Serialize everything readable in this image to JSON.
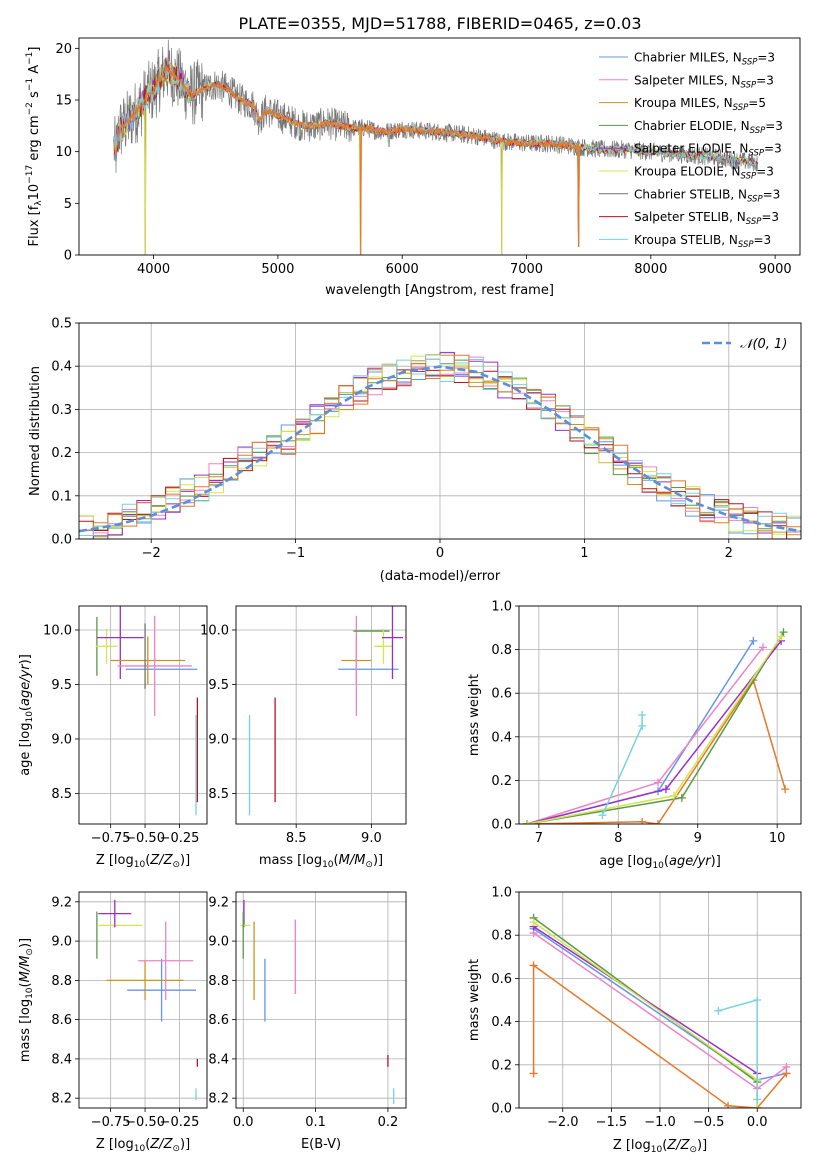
{
  "figure": {
    "title": "PLATE=0355, MJD=51788, FIBERID=0465, z=0.03",
    "colors": {
      "Chabrier MILES": "#6495ed",
      "Salpeter MILES": "#ee82c8",
      "Kroupa MILES": "#c8961e",
      "Chabrier ELODIE": "#5a9a46",
      "Salpeter ELODIE": "#9a30c8",
      "Kroupa ELODIE": "#d2e650",
      "Chabrier STELIB": "#707070",
      "Salpeter STELIB": "#b4141e",
      "Kroupa STELIB": "#78d2dc",
      "orange": "#e67828",
      "normal_curve": "#5b8fd9"
    }
  },
  "chart_data": [
    {
      "id": "spectrum",
      "type": "line",
      "title": "PLATE=0355, MJD=51788, FIBERID=0465, z=0.03",
      "xlabel": "wavelength [Angstrom, rest frame]",
      "ylabel": "Flux [f_λ10^-17 erg cm^-2 s^-1 A^-1]",
      "xlim": [
        3400,
        9200
      ],
      "ylim": [
        0,
        21
      ],
      "xticks": [
        4000,
        5000,
        6000,
        7000,
        8000,
        9000
      ],
      "yticks": [
        0,
        5,
        10,
        15,
        20
      ],
      "grid": false,
      "legend_position": "top-right",
      "legend": [
        {
          "model": "Chabrier MILES",
          "label": "Chabrier MILES, N",
          "n": "=3"
        },
        {
          "model": "Salpeter MILES",
          "label": "Salpeter MILES, N",
          "n": "=3"
        },
        {
          "model": "Kroupa MILES",
          "label": "Kroupa MILES, N",
          "n": "=5"
        },
        {
          "model": "Chabrier ELODIE",
          "label": "Chabrier ELODIE, N",
          "n": "=3"
        },
        {
          "model": "Salpeter ELODIE",
          "label": "Salpeter ELODIE, N",
          "n": "=3"
        },
        {
          "model": "Kroupa ELODIE",
          "label": "Kroupa ELODIE, N",
          "n": "=3"
        },
        {
          "model": "Chabrier STELIB",
          "label": "Chabrier STELIB, N",
          "n": "=3"
        },
        {
          "model": "Salpeter STELIB",
          "label": "Salpeter STELIB, N",
          "n": "=3"
        },
        {
          "model": "Kroupa STELIB",
          "label": "Kroupa STELIB, N",
          "n": "=3"
        }
      ],
      "legend_subscript": "SSP",
      "continuum": {
        "x": [
          3680,
          3700,
          3720,
          3800,
          3900,
          3950,
          4000,
          4100,
          4200,
          4300,
          4400,
          4500,
          4600,
          4700,
          4800,
          4850,
          4900,
          5000,
          5100,
          5200,
          5300,
          5400,
          5500,
          5600,
          5700,
          5800,
          5900,
          6000,
          6200,
          6400,
          6600,
          6800,
          7000,
          7200,
          7400,
          7600,
          7800,
          8000,
          8200,
          8400,
          8600,
          8800,
          8850
        ],
        "y": [
          10.5,
          10.0,
          12.0,
          13.0,
          14.5,
          15.5,
          16.0,
          18.0,
          17.0,
          15.5,
          16.0,
          16.5,
          16.0,
          15.0,
          14.5,
          13.0,
          14.0,
          13.5,
          13.0,
          12.5,
          12.5,
          12.8,
          12.5,
          12.3,
          12.3,
          12.0,
          12.0,
          12.2,
          12.0,
          11.8,
          11.5,
          11.0,
          10.8,
          10.8,
          10.5,
          10.2,
          10.2,
          10.0,
          9.8,
          9.6,
          9.3,
          9.0,
          8.9
        ]
      },
      "absorption_features": [
        {
          "x": 3934,
          "y": 0
        },
        {
          "x": 4861,
          "y": 13.0
        },
        {
          "x": 5175,
          "y": 11.5
        },
        {
          "x": 5664,
          "y": 0
        },
        {
          "x": 5893,
          "y": 10.5
        },
        {
          "x": 6800,
          "y": 0
        },
        {
          "x": 7420,
          "y": 0.8
        }
      ]
    },
    {
      "id": "residuals",
      "type": "line",
      "xlabel": "(data-model)/error",
      "ylabel": "Normed distribution",
      "xlim": [
        -2.5,
        2.5
      ],
      "ylim": [
        0,
        0.5
      ],
      "xticks": [
        -2,
        -1,
        0,
        1,
        2
      ],
      "yticks": [
        0.0,
        0.1,
        0.2,
        0.3,
        0.4,
        0.5
      ],
      "grid": true,
      "legend_position": "top-right",
      "legend": [
        "𝒩(0, 1)"
      ],
      "series": [
        {
          "name": "N(0,1)",
          "style": "dashed",
          "x": [
            -2.5,
            -2.25,
            -2.0,
            -1.75,
            -1.5,
            -1.25,
            -1.0,
            -0.75,
            -0.5,
            -0.25,
            0.0,
            0.25,
            0.5,
            0.75,
            1.0,
            1.25,
            1.5,
            1.75,
            2.0,
            2.25,
            2.5
          ],
          "y": [
            0.018,
            0.032,
            0.054,
            0.086,
            0.13,
            0.183,
            0.242,
            0.301,
            0.352,
            0.387,
            0.399,
            0.387,
            0.352,
            0.301,
            0.242,
            0.183,
            0.13,
            0.086,
            0.054,
            0.032,
            0.018
          ]
        }
      ],
      "histogram_bin_width": 0.1,
      "histogram_model_count": 9
    },
    {
      "id": "age_vs_Z",
      "type": "scatter",
      "xlabel": "Z [log10(Z/Z⊙)]",
      "ylabel": "age [log10(age/yr)]",
      "xlim": [
        -0.98,
        -0.05
      ],
      "ylim": [
        8.22,
        10.22
      ],
      "xticks": [
        -0.75,
        -0.5,
        -0.25
      ],
      "yticks": [
        8.5,
        9.0,
        9.5,
        10.0
      ],
      "grid": true,
      "errorbars": [
        {
          "model": "Chabrier ELODIE",
          "x": -0.85,
          "xerr": 0.0,
          "y": 9.85,
          "yerr": 0.27
        },
        {
          "model": "Kroupa ELODIE",
          "x": -0.78,
          "xerr": 0.08,
          "y": 9.85,
          "yerr": 0.16
        },
        {
          "model": "Salpeter ELODIE",
          "x": -0.68,
          "xerr": 0.17,
          "y": 9.93,
          "yerr": 0.38
        },
        {
          "model": "Chabrier MILES",
          "x": -0.38,
          "xerr": 0.26,
          "y": 9.64,
          "yerr": 0.0
        },
        {
          "model": "Kroupa MILES",
          "x": -0.48,
          "xerr": 0.27,
          "y": 9.72,
          "yerr": 0.22
        },
        {
          "model": "Salpeter MILES",
          "x": -0.43,
          "xerr": 0.27,
          "y": 9.67,
          "yerr": 0.46
        },
        {
          "model": "Chabrier STELIB",
          "x": -0.5,
          "xerr": 0.0,
          "y": 9.76,
          "yerr": 0.3
        },
        {
          "model": "Salpeter STELIB",
          "x": -0.12,
          "xerr": 0.0,
          "y": 8.9,
          "yerr": 0.48
        },
        {
          "model": "Kroupa STELIB",
          "x": -0.13,
          "xerr": 0.0,
          "y": 8.76,
          "yerr": 0.46
        }
      ]
    },
    {
      "id": "age_vs_mass",
      "type": "scatter",
      "xlabel": "mass [log10(M/M⊙)]",
      "ylabel": "",
      "xlim": [
        8.1,
        9.23
      ],
      "ylim": [
        8.22,
        10.22
      ],
      "xticks": [
        8.5,
        9.0
      ],
      "yticks": [
        8.5,
        9.0,
        9.5,
        10.0
      ],
      "grid": true,
      "errorbars": [
        {
          "model": "Chabrier MILES",
          "x": 8.98,
          "xerr": 0.2,
          "y": 9.64,
          "yerr": 0.0
        },
        {
          "model": "Kroupa MILES",
          "x": 8.9,
          "xerr": 0.1,
          "y": 9.72,
          "yerr": 0.22
        },
        {
          "model": "Salpeter MILES",
          "x": 8.9,
          "xerr": 0.0,
          "y": 9.67,
          "yerr": 0.46
        },
        {
          "model": "Chabrier ELODIE",
          "x": 9.0,
          "xerr": 0.12,
          "y": 9.99,
          "yerr": 0.0
        },
        {
          "model": "Kroupa ELODIE",
          "x": 9.08,
          "xerr": 0.06,
          "y": 9.85,
          "yerr": 0.16
        },
        {
          "model": "Salpeter ELODIE",
          "x": 9.14,
          "xerr": 0.07,
          "y": 9.93,
          "yerr": 0.38
        },
        {
          "model": "Salpeter STELIB",
          "x": 8.36,
          "xerr": 0.0,
          "y": 8.9,
          "yerr": 0.48
        },
        {
          "model": "Kroupa STELIB",
          "x": 8.19,
          "xerr": 0.0,
          "y": 8.76,
          "yerr": 0.46
        }
      ]
    },
    {
      "id": "weight_vs_age",
      "type": "line",
      "xlabel": "age [log10(age/yr)]",
      "ylabel": "mass weight",
      "xlim": [
        6.75,
        10.3
      ],
      "ylim": [
        0.0,
        1.0
      ],
      "xticks": [
        7,
        8,
        9,
        10
      ],
      "yticks": [
        0.0,
        0.2,
        0.4,
        0.6,
        0.8,
        1.0
      ],
      "grid": true,
      "series": [
        {
          "name": "Chabrier MILES",
          "x": [
            6.85,
            8.5,
            9.7
          ],
          "y": [
            0.0,
            0.15,
            0.84
          ]
        },
        {
          "name": "Salpeter MILES",
          "x": [
            6.85,
            8.5,
            9.82
          ],
          "y": [
            0.0,
            0.19,
            0.81
          ]
        },
        {
          "name": "Kroupa MILES",
          "x": [
            6.85,
            8.3,
            8.5,
            9.7,
            10.1
          ],
          "y": [
            0.0,
            0.01,
            0.0,
            0.66,
            0.16
          ]
        },
        {
          "name": "Chabrier ELODIE",
          "x": [
            6.85,
            8.8,
            10.08
          ],
          "y": [
            0.0,
            0.12,
            0.88
          ]
        },
        {
          "name": "Salpeter ELODIE",
          "x": [
            6.85,
            8.6,
            10.05
          ],
          "y": [
            0.0,
            0.16,
            0.84
          ]
        },
        {
          "name": "Kroupa ELODIE",
          "x": [
            6.85,
            8.7,
            10.05
          ],
          "y": [
            0.0,
            0.13,
            0.86
          ]
        },
        {
          "name": "Kroupa STELIB",
          "x": [
            7.8,
            8.3,
            8.3
          ],
          "y": [
            0.04,
            0.45,
            0.5
          ]
        }
      ]
    },
    {
      "id": "mass_vs_Z",
      "type": "scatter",
      "xlabel": "Z [log10(Z/Z⊙)]",
      "ylabel": "mass [log10(M/M⊙)]",
      "xlim": [
        -0.98,
        -0.05
      ],
      "ylim": [
        8.15,
        9.25
      ],
      "xticks": [
        -0.75,
        -0.5,
        -0.25
      ],
      "yticks": [
        8.2,
        8.4,
        8.6,
        8.8,
        9.0,
        9.2
      ],
      "grid": true,
      "errorbars": [
        {
          "model": "Chabrier ELODIE",
          "x": -0.85,
          "xerr": 0.0,
          "y": 9.03,
          "yerr": 0.12
        },
        {
          "model": "Kroupa ELODIE",
          "x": -0.68,
          "xerr": 0.16,
          "y": 9.08,
          "yerr": 0.0
        },
        {
          "model": "Salpeter ELODIE",
          "x": -0.72,
          "xerr": 0.12,
          "y": 9.14,
          "yerr": 0.07
        },
        {
          "model": "Chabrier MILES",
          "x": -0.38,
          "xerr": 0.25,
          "y": 8.75,
          "yerr": 0.16
        },
        {
          "model": "Kroupa MILES",
          "x": -0.5,
          "xerr": 0.28,
          "y": 8.8,
          "yerr": 0.1
        },
        {
          "model": "Salpeter MILES",
          "x": -0.35,
          "xerr": 0.2,
          "y": 8.9,
          "yerr": 0.2
        },
        {
          "model": "Salpeter STELIB",
          "x": -0.12,
          "xerr": 0.0,
          "y": 8.38,
          "yerr": 0.02
        },
        {
          "model": "Kroupa STELIB",
          "x": -0.13,
          "xerr": 0.0,
          "y": 8.22,
          "yerr": 0.03
        }
      ]
    },
    {
      "id": "mass_vs_ebv",
      "type": "scatter",
      "xlabel": "E(B-V)",
      "ylabel": "",
      "xlim": [
        -0.01,
        0.225
      ],
      "ylim": [
        8.15,
        9.25
      ],
      "xticks": [
        0.0,
        0.1,
        0.2
      ],
      "yticks": [
        8.2,
        8.4,
        8.6,
        8.8,
        9.0,
        9.2
      ],
      "grid": true,
      "errorbars": [
        {
          "model": "Salpeter ELODIE",
          "x": 0.001,
          "xerr": 0.0,
          "y": 9.14,
          "yerr": 0.07
        },
        {
          "model": "Kroupa ELODIE",
          "x": 0.003,
          "xerr": 0.0,
          "y": 9.08,
          "yerr": 0.0
        },
        {
          "model": "Chabrier ELODIE",
          "x": 0.0,
          "xerr": 0.0,
          "y": 9.03,
          "yerr": 0.12
        },
        {
          "model": "Kroupa MILES",
          "x": 0.015,
          "xerr": 0.0,
          "y": 8.9,
          "yerr": 0.2
        },
        {
          "model": "Chabrier MILES",
          "x": 0.03,
          "xerr": 0.0,
          "y": 8.75,
          "yerr": 0.16
        },
        {
          "model": "Salpeter MILES",
          "x": 0.072,
          "xerr": 0.0,
          "y": 8.92,
          "yerr": 0.19
        },
        {
          "model": "Salpeter STELIB",
          "x": 0.2,
          "xerr": 0.0,
          "y": 8.39,
          "yerr": 0.03
        },
        {
          "model": "Kroupa STELIB",
          "x": 0.208,
          "xerr": 0.0,
          "y": 8.21,
          "yerr": 0.04
        }
      ]
    },
    {
      "id": "weight_vs_Z",
      "type": "line",
      "xlabel": "Z [log10(Z/Z⊙)]",
      "ylabel": "mass weight",
      "xlim": [
        -2.45,
        0.45
      ],
      "ylim": [
        0.0,
        1.0
      ],
      "xticks": [
        -2.0,
        -1.5,
        -1.0,
        -0.5,
        0.0
      ],
      "yticks": [
        0.0,
        0.2,
        0.4,
        0.6,
        0.8,
        1.0
      ],
      "grid": true,
      "series": [
        {
          "name": "Chabrier MILES",
          "x": [
            -2.3,
            0.0,
            0.3
          ],
          "y": [
            0.83,
            0.13,
            0.16
          ]
        },
        {
          "name": "Salpeter MILES",
          "x": [
            -2.3,
            0.0,
            0.3
          ],
          "y": [
            0.81,
            0.09,
            0.19
          ]
        },
        {
          "name": "Kroupa MILES",
          "x": [
            -2.3,
            -2.3,
            -0.3,
            0.0,
            0.3
          ],
          "y": [
            0.16,
            0.66,
            0.01,
            0.0,
            0.16
          ]
        },
        {
          "name": "Chabrier ELODIE",
          "x": [
            -2.3,
            0.0,
            0.0
          ],
          "y": [
            0.88,
            0.12,
            0.0
          ]
        },
        {
          "name": "Salpeter ELODIE",
          "x": [
            -2.3,
            0.0,
            0.0
          ],
          "y": [
            0.84,
            0.16,
            0.0
          ]
        },
        {
          "name": "Kroupa ELODIE",
          "x": [
            -2.3,
            0.0,
            0.0
          ],
          "y": [
            0.86,
            0.13,
            0.0
          ]
        },
        {
          "name": "Kroupa STELIB",
          "x": [
            -0.4,
            0.0,
            0.0
          ],
          "y": [
            0.45,
            0.5,
            0.04
          ]
        }
      ]
    }
  ]
}
